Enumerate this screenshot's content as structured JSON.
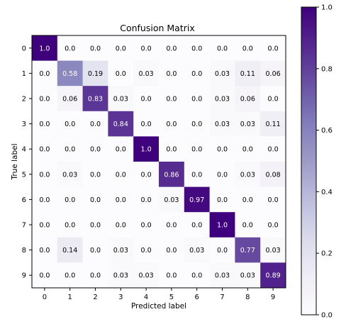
{
  "chart_data": {
    "type": "heatmap",
    "title": "Confusion Matrix",
    "xlabel": "Predicted label",
    "ylabel": "True label",
    "x_tick_labels": [
      "0",
      "1",
      "2",
      "3",
      "4",
      "5",
      "6",
      "7",
      "8",
      "9"
    ],
    "y_tick_labels": [
      "0",
      "1",
      "2",
      "3",
      "4",
      "5",
      "6",
      "7",
      "8",
      "9"
    ],
    "matrix": [
      [
        1.0,
        0.0,
        0.0,
        0.0,
        0.0,
        0.0,
        0.0,
        0.0,
        0.0,
        0.0
      ],
      [
        0.0,
        0.58,
        0.19,
        0.0,
        0.03,
        0.0,
        0.0,
        0.03,
        0.11,
        0.06
      ],
      [
        0.0,
        0.06,
        0.83,
        0.03,
        0.0,
        0.0,
        0.0,
        0.03,
        0.06,
        0.0
      ],
      [
        0.0,
        0.0,
        0.0,
        0.84,
        0.0,
        0.0,
        0.0,
        0.03,
        0.03,
        0.11
      ],
      [
        0.0,
        0.0,
        0.0,
        0.0,
        1.0,
        0.0,
        0.0,
        0.0,
        0.0,
        0.0
      ],
      [
        0.0,
        0.03,
        0.0,
        0.0,
        0.0,
        0.86,
        0.0,
        0.0,
        0.03,
        0.08
      ],
      [
        0.0,
        0.0,
        0.0,
        0.0,
        0.0,
        0.03,
        0.97,
        0.0,
        0.0,
        0.0
      ],
      [
        0.0,
        0.0,
        0.0,
        0.0,
        0.0,
        0.0,
        0.0,
        1.0,
        0.0,
        0.0
      ],
      [
        0.0,
        0.14,
        0.0,
        0.03,
        0.0,
        0.0,
        0.03,
        0.0,
        0.77,
        0.03
      ],
      [
        0.0,
        0.0,
        0.0,
        0.03,
        0.03,
        0.0,
        0.0,
        0.03,
        0.03,
        0.89
      ]
    ],
    "colormap": "Purples",
    "colormap_stops": [
      "#fcfbfd",
      "#efedf5",
      "#dadaeb",
      "#bcbddc",
      "#9e9ac8",
      "#807dba",
      "#6a51a3",
      "#54278f",
      "#3f007d"
    ],
    "value_range": [
      0.0,
      1.0
    ],
    "colorbar_ticks": [
      0.0,
      0.2,
      0.4,
      0.6,
      0.8,
      1.0
    ],
    "colorbar_tick_labels": [
      "0.0",
      "0.2",
      "0.4",
      "0.6",
      "0.8",
      "1.0"
    ],
    "text_color_dark": "#000000",
    "text_color_light": "#ffffff",
    "text_threshold": 0.5,
    "grid": false,
    "legend": "colorbar-right"
  }
}
